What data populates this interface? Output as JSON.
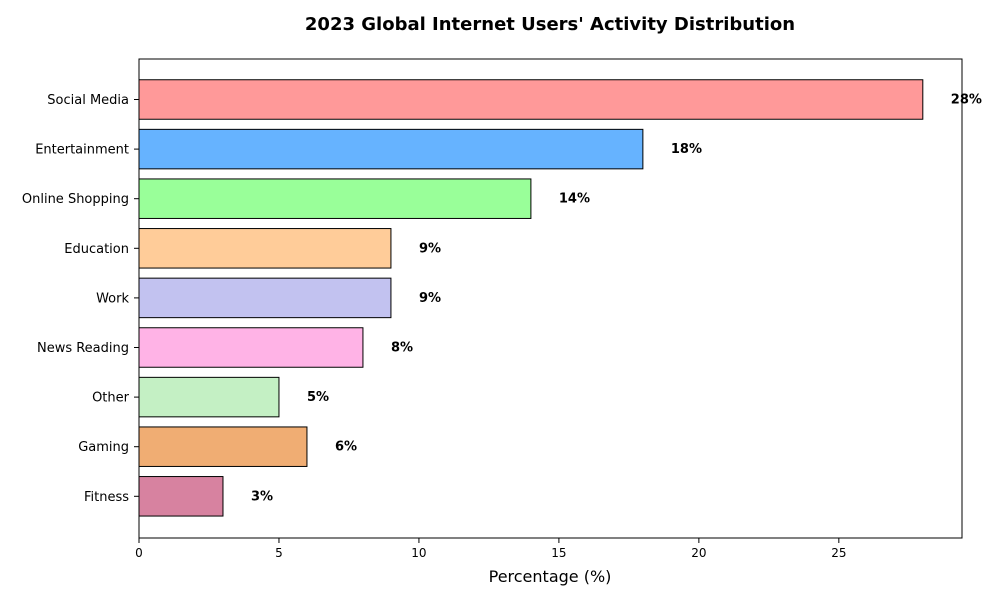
{
  "chart_data": {
    "type": "bar",
    "orientation": "horizontal",
    "title": "2023 Global Internet Users' Activity Distribution",
    "xlabel": "Percentage (%)",
    "ylabel": "",
    "xlim": [
      0,
      29.4
    ],
    "xticks": [
      0,
      5,
      10,
      15,
      20,
      25
    ],
    "grid": false,
    "categories": [
      "Social Media",
      "Entertainment",
      "Online Shopping",
      "Education",
      "Work",
      "News Reading",
      "Other",
      "Gaming",
      "Fitness"
    ],
    "values": [
      28,
      18,
      14,
      9,
      9,
      8,
      5,
      6,
      3
    ],
    "value_labels": [
      "28%",
      "18%",
      "14%",
      "9%",
      "9%",
      "8%",
      "5%",
      "6%",
      "3%"
    ],
    "colors": [
      "#ff9999",
      "#66b3ff",
      "#99ff99",
      "#ffcc99",
      "#c2c2f0",
      "#ffb3e6",
      "#c4f0c4",
      "#f0ad73",
      "#d782a0"
    ],
    "edge_color": "#000000"
  }
}
